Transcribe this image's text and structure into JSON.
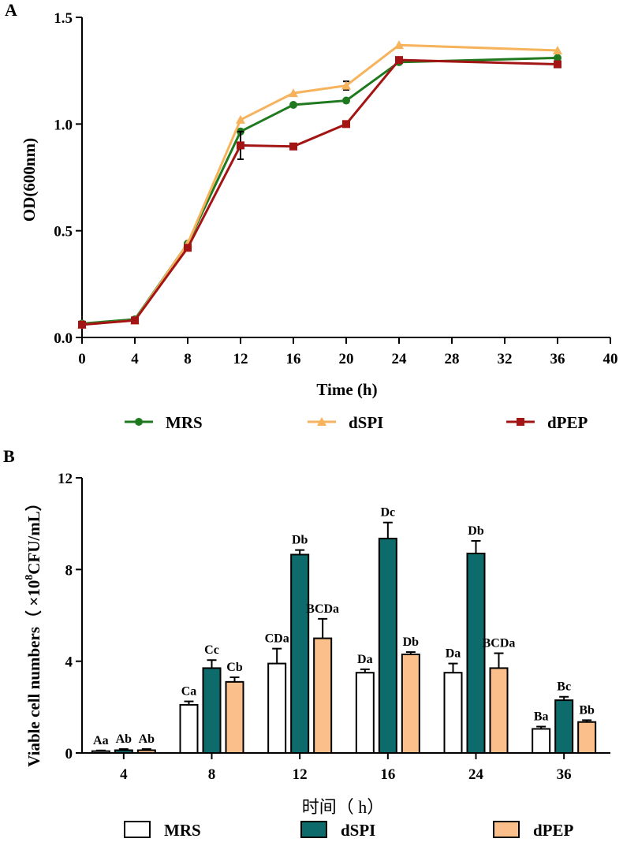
{
  "chart_data": [
    {
      "type": "line",
      "panel_label": "A",
      "title": "",
      "xlabel": "Time (h)",
      "ylabel": "OD(600nm)",
      "xlim": [
        0,
        40
      ],
      "ylim": [
        0,
        1.5
      ],
      "x_ticks": [
        "0",
        "4",
        "8",
        "12",
        "16",
        "20",
        "24",
        "28",
        "32",
        "36",
        "40"
      ],
      "y_ticks": [
        "0.0",
        "0.5",
        "1.0",
        "1.5"
      ],
      "x_tick_values": [
        0,
        4,
        8,
        12,
        16,
        20,
        24,
        28,
        32,
        36,
        40
      ],
      "y_tick_values": [
        0,
        0.5,
        1.0,
        1.5
      ],
      "grid": false,
      "legend_position": "bottom",
      "series": [
        {
          "name": "MRS",
          "color": "#1f7a1f",
          "marker": "circle",
          "x": [
            0,
            4,
            8,
            12,
            16,
            20,
            24,
            36
          ],
          "y": [
            0.065,
            0.085,
            0.44,
            0.965,
            1.09,
            1.11,
            1.29,
            1.31
          ],
          "err": [
            0,
            0,
            0,
            0,
            0,
            0,
            0,
            0.02
          ]
        },
        {
          "name": "dSPI",
          "color": "#f7b25c",
          "marker": "triangle",
          "x": [
            0,
            4,
            8,
            12,
            16,
            20,
            24,
            36
          ],
          "y": [
            0.06,
            0.08,
            0.44,
            1.02,
            1.145,
            1.18,
            1.37,
            1.345
          ],
          "err": [
            0,
            0,
            0,
            0,
            0,
            0.02,
            0,
            0
          ]
        },
        {
          "name": "dPEP",
          "color": "#a31515",
          "marker": "square",
          "x": [
            0,
            4,
            8,
            12,
            16,
            20,
            24,
            36
          ],
          "y": [
            0.06,
            0.08,
            0.42,
            0.9,
            0.895,
            1.0,
            1.3,
            1.28
          ],
          "err": [
            0,
            0,
            0,
            0.065,
            0,
            0,
            0,
            0
          ]
        }
      ]
    },
    {
      "type": "bar",
      "panel_label": "B",
      "title": "",
      "xlabel": "时间（ h）",
      "ylabel_main": "Viable cell numbers（ ×10",
      "ylabel_sup": "8",
      "ylabel_tail": "CFU/mL）",
      "ylim": [
        0,
        12
      ],
      "y_ticks": [
        "0",
        "4",
        "8",
        "12"
      ],
      "y_tick_values": [
        0,
        4,
        8,
        12
      ],
      "categories": [
        "4",
        "8",
        "12",
        "16",
        "24",
        "36"
      ],
      "grid": false,
      "legend_position": "bottom",
      "series": [
        {
          "name": "MRS",
          "color": "#ffffff",
          "values": [
            0.08,
            2.1,
            3.9,
            3.5,
            3.5,
            1.05
          ],
          "err": [
            0.03,
            0.15,
            0.65,
            0.15,
            0.4,
            0.1
          ],
          "labels": [
            "Aa",
            "Ca",
            "CDa",
            "Da",
            "Da",
            "Ba"
          ]
        },
        {
          "name": "dSPI",
          "color": "#0d6b6b",
          "values": [
            0.12,
            3.7,
            8.65,
            9.35,
            8.7,
            2.3
          ],
          "err": [
            0.05,
            0.35,
            0.2,
            0.7,
            0.55,
            0.15
          ],
          "labels": [
            "Ab",
            "Cc",
            "Db",
            "Dc",
            "Db",
            "Bc"
          ]
        },
        {
          "name": "dPEP",
          "color": "#fbbf8c",
          "values": [
            0.12,
            3.1,
            5.0,
            4.3,
            3.7,
            1.35
          ],
          "err": [
            0.05,
            0.2,
            0.85,
            0.1,
            0.65,
            0.08
          ],
          "labels": [
            "Ab",
            "Cb",
            "BCDa",
            "Db",
            "BCDa",
            "Bb"
          ]
        }
      ]
    }
  ]
}
